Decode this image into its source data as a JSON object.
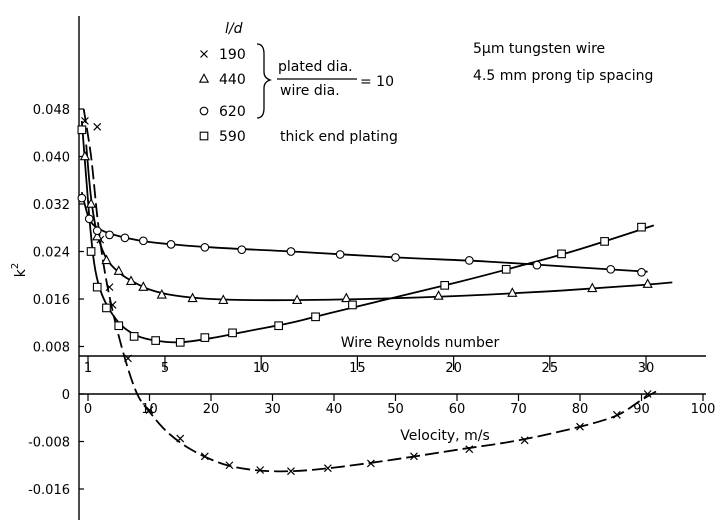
{
  "chart_data": {
    "type": "scatter",
    "ylabel": "k",
    "ylabel_superscript": "2",
    "xlabel": "Velocity,  m/s",
    "ylim": [
      -0.016,
      0.048
    ],
    "xlim": [
      -2,
      100
    ],
    "yticks": [
      "-0.016",
      "-0.008",
      "0",
      "0.008",
      "0.016",
      "0.024",
      "0.032",
      "0.040",
      "0.048"
    ],
    "xticks": [
      "0",
      "10",
      "20",
      "30",
      "40",
      "50",
      "60",
      "70",
      "80",
      "90",
      "100"
    ],
    "secondary_axis": {
      "label": "Wire Reynolds number",
      "ticks": [
        "1",
        "5",
        "10",
        "15",
        "20",
        "25",
        "30"
      ]
    },
    "annotations": {
      "line1": "5μm tungsten wire",
      "line2": "4.5 mm prong tip spacing",
      "ratio_numerator": "plated dia.",
      "ratio_denominator": "wire dia.",
      "ratio_value": "= 10"
    },
    "legend": {
      "header": "l/d",
      "entries": [
        {
          "marker": "x",
          "value": "190"
        },
        {
          "marker": "triangle",
          "value": "440"
        },
        {
          "marker": "circle",
          "value": "620"
        },
        {
          "marker": "square",
          "value": "590",
          "note": "thick end plating"
        }
      ]
    },
    "series": [
      {
        "name": "190",
        "marker": "x",
        "points": [
          [
            -0.5,
            0.046
          ],
          [
            1.5,
            0.045
          ],
          [
            2.0,
            0.026
          ],
          [
            3.5,
            0.018
          ],
          [
            4.0,
            0.015
          ],
          [
            6.5,
            0.006
          ],
          [
            10,
            -0.0027
          ],
          [
            15,
            -0.0075
          ],
          [
            19,
            -0.0105
          ],
          [
            23,
            -0.012
          ],
          [
            28,
            -0.0128
          ],
          [
            33,
            -0.013
          ],
          [
            39,
            -0.0125
          ],
          [
            46,
            -0.0117
          ],
          [
            53,
            -0.0105
          ],
          [
            62,
            -0.0093
          ],
          [
            71,
            -0.0078
          ],
          [
            80,
            -0.0055
          ],
          [
            86,
            -0.0035
          ],
          [
            91,
            0.0
          ]
        ]
      },
      {
        "name": "440",
        "marker": "triangle",
        "points": [
          [
            -0.5,
            0.04
          ],
          [
            0.5,
            0.032
          ],
          [
            1.5,
            0.0265
          ],
          [
            3.0,
            0.0225
          ],
          [
            5.0,
            0.0207
          ],
          [
            7.0,
            0.019
          ],
          [
            9.0,
            0.018
          ],
          [
            12.0,
            0.0167
          ],
          [
            17.0,
            0.0161
          ],
          [
            22.0,
            0.0158
          ],
          [
            34.0,
            0.0158
          ],
          [
            42.0,
            0.0161
          ],
          [
            57.0,
            0.0165
          ],
          [
            69.0,
            0.017
          ],
          [
            82.0,
            0.0178
          ],
          [
            91.0,
            0.0185
          ]
        ]
      },
      {
        "name": "620",
        "marker": "circle",
        "points": [
          [
            -1.0,
            0.033
          ],
          [
            0.2,
            0.0295
          ],
          [
            1.5,
            0.0275
          ],
          [
            3.5,
            0.0268
          ],
          [
            6.0,
            0.0263
          ],
          [
            9.0,
            0.0258
          ],
          [
            13.5,
            0.0252
          ],
          [
            19.0,
            0.0247
          ],
          [
            25.0,
            0.0243
          ],
          [
            33.0,
            0.024
          ],
          [
            41.0,
            0.0235
          ],
          [
            50.0,
            0.023
          ],
          [
            62.0,
            0.0225
          ],
          [
            73.0,
            0.0217
          ],
          [
            85.0,
            0.021
          ],
          [
            90.0,
            0.0205
          ]
        ]
      },
      {
        "name": "590",
        "marker": "square",
        "points": [
          [
            -1.0,
            0.0445
          ],
          [
            0.5,
            0.024
          ],
          [
            1.5,
            0.018
          ],
          [
            3.0,
            0.0145
          ],
          [
            5.0,
            0.0115
          ],
          [
            7.5,
            0.0097
          ],
          [
            11.0,
            0.009
          ],
          [
            15.0,
            0.0087
          ],
          [
            19.0,
            0.0095
          ],
          [
            23.5,
            0.0103
          ],
          [
            31.0,
            0.0115
          ],
          [
            37.0,
            0.013
          ],
          [
            43.0,
            0.015
          ],
          [
            58.0,
            0.0183
          ],
          [
            68.0,
            0.021
          ],
          [
            77.0,
            0.0236
          ],
          [
            84.0,
            0.0257
          ],
          [
            90.0,
            0.0281
          ]
        ]
      }
    ],
    "curves": {
      "190": [
        [
          -0.7,
          0.048
        ],
        [
          0.5,
          0.04
        ],
        [
          1.5,
          0.03
        ],
        [
          2.5,
          0.022
        ],
        [
          4,
          0.014
        ],
        [
          6,
          0.006
        ],
        [
          8,
          0.0
        ],
        [
          10,
          -0.003
        ],
        [
          13,
          -0.0065
        ],
        [
          17,
          -0.0095
        ],
        [
          22,
          -0.0118
        ],
        [
          27,
          -0.0128
        ],
        [
          33,
          -0.013
        ],
        [
          40,
          -0.0124
        ],
        [
          50,
          -0.011
        ],
        [
          60,
          -0.0094
        ],
        [
          70,
          -0.0078
        ],
        [
          80,
          -0.0055
        ],
        [
          86,
          -0.0036
        ],
        [
          90,
          -0.001
        ],
        [
          93,
          0.0008
        ]
      ],
      "440": [
        [
          -0.3,
          0.042
        ],
        [
          0.5,
          0.033
        ],
        [
          1.5,
          0.027
        ],
        [
          3,
          0.0228
        ],
        [
          5,
          0.0205
        ],
        [
          7,
          0.0191
        ],
        [
          10,
          0.0176
        ],
        [
          14,
          0.0166
        ],
        [
          20,
          0.016
        ],
        [
          30,
          0.0158
        ],
        [
          45,
          0.016
        ],
        [
          60,
          0.0165
        ],
        [
          75,
          0.0173
        ],
        [
          88,
          0.0182
        ],
        [
          95,
          0.0188
        ]
      ],
      "620": [
        [
          -1.0,
          0.034
        ],
        [
          0.2,
          0.0295
        ],
        [
          2,
          0.0277
        ],
        [
          5,
          0.0266
        ],
        [
          10,
          0.0256
        ],
        [
          20,
          0.0247
        ],
        [
          35,
          0.0239
        ],
        [
          50,
          0.023
        ],
        [
          65,
          0.0223
        ],
        [
          80,
          0.0213
        ],
        [
          91,
          0.0206
        ]
      ],
      "590": [
        [
          -1.0,
          0.046
        ],
        [
          0.2,
          0.03
        ],
        [
          1,
          0.022
        ],
        [
          2,
          0.0175
        ],
        [
          3.5,
          0.0142
        ],
        [
          5.5,
          0.0115
        ],
        [
          8,
          0.0098
        ],
        [
          11,
          0.009
        ],
        [
          15,
          0.0087
        ],
        [
          20,
          0.0094
        ],
        [
          26,
          0.0106
        ],
        [
          33,
          0.012
        ],
        [
          40,
          0.0138
        ],
        [
          50,
          0.0163
        ],
        [
          60,
          0.0188
        ],
        [
          70,
          0.0215
        ],
        [
          80,
          0.0244
        ],
        [
          92,
          0.0284
        ]
      ]
    }
  }
}
